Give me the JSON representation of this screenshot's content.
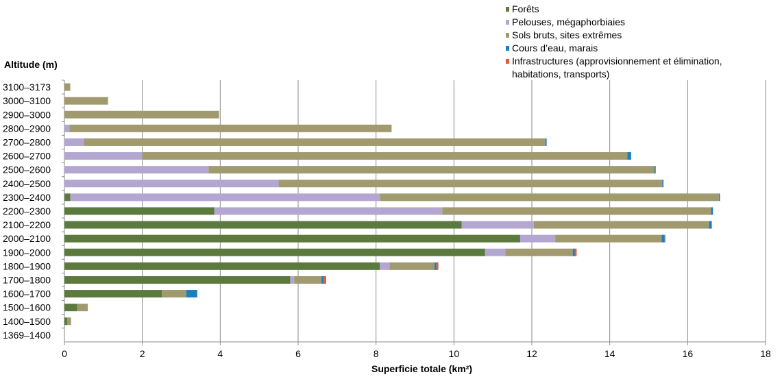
{
  "chart_data": {
    "type": "bar",
    "orientation": "horizontal",
    "stacked": true,
    "ylabel": "Altitude (m)",
    "xlabel": "Superficie totale (km²)",
    "xlim": [
      0,
      18
    ],
    "xticks": [
      "0",
      "2",
      "4",
      "6",
      "8",
      "10",
      "12",
      "14",
      "16",
      "18"
    ],
    "grid": "vertical",
    "legend_position": "top-right",
    "categories": [
      "3100–3173",
      "3000–3100",
      "2900–3000",
      "2800–2900",
      "2700–2800",
      "2600–2700",
      "2500–2600",
      "2400–2500",
      "2300–2400",
      "2200–2300",
      "2100–2200",
      "2000–2100",
      "1900–2000",
      "1800–1900",
      "1700–1800",
      "1600–1700",
      "1500–1600",
      "1400–1500",
      "1369–1400"
    ],
    "series": [
      {
        "name": "Forêts",
        "color": "#5c7a3e",
        "values": [
          0,
          0,
          0,
          0,
          0,
          0,
          0,
          0,
          0.15,
          3.85,
          10.2,
          11.7,
          10.8,
          8.1,
          5.8,
          2.5,
          0.33,
          0.07,
          0
        ]
      },
      {
        "name": "Pelouses, mégaphorbiaies",
        "color": "#b3a7d2",
        "values": [
          0,
          0,
          0,
          0.13,
          0.5,
          2.0,
          3.7,
          5.5,
          7.95,
          5.85,
          1.85,
          0.9,
          0.52,
          0.25,
          0.1,
          0,
          0,
          0,
          0
        ]
      },
      {
        "name": "Sols bruts, sites extrêmes",
        "color": "#a09a6e",
        "values": [
          0.15,
          1.12,
          3.97,
          8.27,
          11.85,
          12.45,
          11.45,
          9.85,
          8.7,
          6.9,
          4.5,
          2.73,
          1.73,
          1.15,
          0.7,
          0.63,
          0.27,
          0.1,
          0
        ]
      },
      {
        "name": "Cours d’eau, marais",
        "color": "#1a7fc1",
        "values": [
          0,
          0,
          0,
          0,
          0.03,
          0.1,
          0.03,
          0.03,
          0.03,
          0.05,
          0.07,
          0.08,
          0.05,
          0.05,
          0.05,
          0.28,
          0,
          0,
          0
        ]
      },
      {
        "name": "Infrastructures (approvisionnement et élimination, habitations, transports)",
        "color": "#e35b3a",
        "values": [
          0,
          0,
          0,
          0,
          0,
          0,
          0,
          0,
          0,
          0,
          0,
          0.01,
          0.05,
          0.05,
          0.07,
          0,
          0,
          0,
          0
        ]
      }
    ],
    "legend": [
      {
        "label": "Forêts"
      },
      {
        "label": "Pelouses, mégaphorbiaies"
      },
      {
        "label": "Sols bruts, sites extrêmes"
      },
      {
        "label": "Cours d’eau, marais"
      },
      {
        "label": "Infrastructures (approvisionnement et élimination, habitations, transports)"
      }
    ]
  }
}
